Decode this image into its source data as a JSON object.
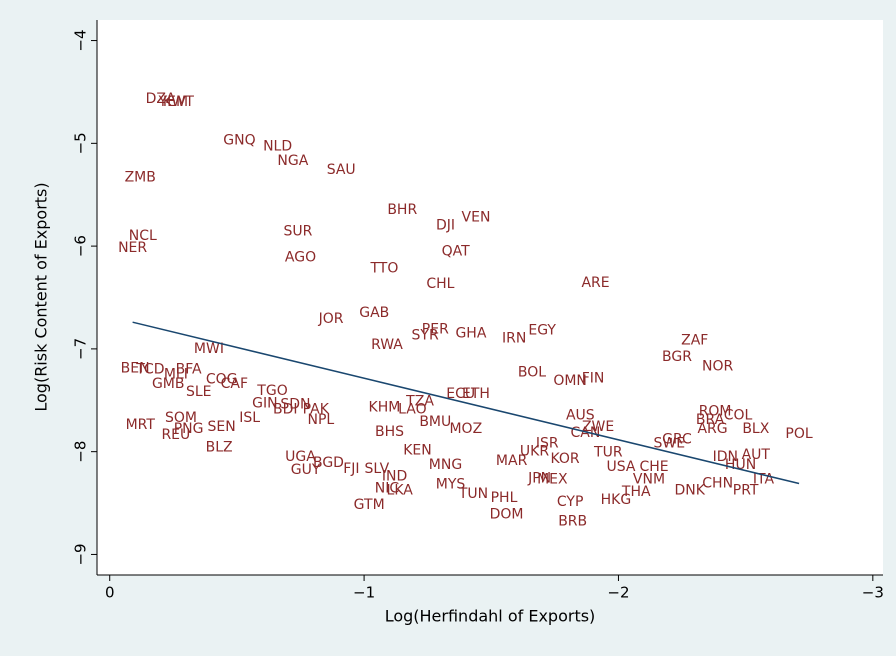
{
  "chart_data": {
    "type": "scatter",
    "x_label": "Log(Herfindahl of Exports)",
    "y_label": "Log(Risk Content of Exports)",
    "xlim": [
      0.05,
      -3.04
    ],
    "ylim": [
      -9.2,
      -3.8
    ],
    "xticks": [
      0,
      {
        "value": -1,
        "label": "−1"
      },
      {
        "value": -2,
        "label": "−2"
      },
      {
        "value": -3,
        "label": "−3"
      }
    ],
    "yticks": [
      {
        "value": -4,
        "label": "−4"
      },
      {
        "value": -5,
        "label": "−5"
      },
      {
        "value": -6,
        "label": "−6"
      },
      {
        "value": -7,
        "label": "−7"
      },
      {
        "value": -8,
        "label": "−8"
      },
      {
        "value": -9,
        "label": "−9"
      }
    ],
    "label_color": "#8b2a2a",
    "labels": [
      "DZA",
      "KWT",
      "YEM",
      "GNQ",
      "NLD",
      "NGA",
      "SAU",
      "ZMB",
      "BHR",
      "VEN",
      "DJI",
      "SUR",
      "NCL",
      "NER",
      "QAT",
      "AGO",
      "TTO",
      "ARE",
      "CHL",
      "GAB",
      "JOR",
      "EGY",
      "PER",
      "SYR",
      "GHA",
      "IRN",
      "ZAF",
      "RWA",
      "MWI",
      "BGR",
      "NOR",
      "BEN",
      "TCD",
      "BFA",
      "MLI",
      "BOL",
      "FIN",
      "OMN",
      "COG",
      "GMB",
      "CAF",
      "SLE",
      "TGO",
      "ECU",
      "ETH",
      "GIN",
      "SDN",
      "BDI",
      "PAK",
      "TZA",
      "KHM",
      "LAO",
      "ROM",
      "COL",
      "AUS",
      "SOM",
      "ISL",
      "NPL",
      "BRA",
      "MRT",
      "PNG",
      "SEN",
      "ZWE",
      "BLX",
      "ARG",
      "POL",
      "REU",
      "CAN",
      "BHS",
      "BMU",
      "MOZ",
      "GRC",
      "SWE",
      "ISR",
      "BLZ",
      "KEN",
      "IDN",
      "AUT",
      "UKR",
      "TUR",
      "HUN",
      "UGA",
      "BGD",
      "GUY",
      "FJI",
      "SLV",
      "KOR",
      "ITA",
      "CHN",
      "JPN",
      "MEX",
      "PRT",
      "DNK",
      "VNM",
      "THA",
      "HKG",
      "CYP",
      "TUN",
      "PHL",
      "DOM",
      "BRB",
      "IND",
      "NIC",
      "LKA",
      "MYS",
      "MAR",
      "GTM",
      "MNG",
      "USA",
      "CHE"
    ],
    "x": [
      -0.2,
      -0.27,
      -0.25,
      -0.51,
      -0.66,
      -0.72,
      -0.91,
      -0.12,
      -1.15,
      -1.44,
      -1.32,
      -0.74,
      -0.13,
      -0.09,
      -1.36,
      -0.75,
      -1.08,
      -1.91,
      -1.3,
      -1.04,
      -0.87,
      -1.7,
      -1.28,
      -1.24,
      -1.42,
      -1.59,
      -2.3,
      -1.09,
      -0.39,
      -2.23,
      -2.39,
      -0.1,
      -0.16,
      -0.31,
      -0.26,
      -1.66,
      -1.9,
      -1.81,
      -0.44,
      -0.23,
      -0.49,
      -0.35,
      -0.64,
      -1.38,
      -1.44,
      -0.61,
      -0.73,
      -0.69,
      -0.81,
      -1.22,
      -1.08,
      -1.19,
      -2.38,
      -2.47,
      -1.85,
      -0.28,
      -0.55,
      -0.83,
      -2.36,
      -0.12,
      -0.31,
      -0.44,
      -1.92,
      -2.54,
      -2.37,
      -2.71,
      -0.26,
      -1.87,
      -1.1,
      -1.28,
      -1.4,
      -2.23,
      -2.2,
      -1.72,
      -0.43,
      -1.21,
      -2.42,
      -2.54,
      -1.67,
      -1.96,
      -2.48,
      -0.75,
      -0.86,
      -0.77,
      -0.95,
      -1.05,
      -1.79,
      -2.57,
      -2.39,
      -1.69,
      -1.74,
      -2.5,
      -2.28,
      -2.12,
      -2.07,
      -1.99,
      -1.81,
      -1.43,
      -1.55,
      -1.56,
      -1.82,
      -1.12,
      -1.09,
      -1.14,
      -1.34,
      -1.58,
      -1.02,
      -1.32,
      -2.01,
      -2.14
    ],
    "y": [
      -4.57,
      -4.6,
      -4.6,
      -4.97,
      -5.03,
      -5.17,
      -5.26,
      -5.33,
      -5.65,
      -5.72,
      -5.8,
      -5.86,
      -5.9,
      -6.02,
      -6.05,
      -6.11,
      -6.22,
      -6.36,
      -6.37,
      -6.65,
      -6.71,
      -6.82,
      -6.81,
      -6.87,
      -6.85,
      -6.9,
      -6.92,
      -6.96,
      -7.0,
      -7.08,
      -7.17,
      -7.19,
      -7.2,
      -7.2,
      -7.25,
      -7.23,
      -7.29,
      -7.31,
      -7.3,
      -7.34,
      -7.34,
      -7.42,
      -7.41,
      -7.44,
      -7.44,
      -7.53,
      -7.54,
      -7.59,
      -7.59,
      -7.51,
      -7.57,
      -7.59,
      -7.61,
      -7.65,
      -7.65,
      -7.67,
      -7.67,
      -7.69,
      -7.69,
      -7.74,
      -7.78,
      -7.76,
      -7.76,
      -7.78,
      -7.78,
      -7.83,
      -7.84,
      -7.82,
      -7.81,
      -7.71,
      -7.78,
      -7.88,
      -7.92,
      -7.92,
      -7.96,
      -7.99,
      -8.05,
      -8.03,
      -8.0,
      -8.01,
      -8.13,
      -8.05,
      -8.11,
      -8.18,
      -8.17,
      -8.17,
      -8.07,
      -8.27,
      -8.31,
      -8.26,
      -8.27,
      -8.38,
      -8.38,
      -8.27,
      -8.39,
      -8.47,
      -8.49,
      -8.41,
      -8.45,
      -8.61,
      -8.68,
      -8.24,
      -8.36,
      -8.38,
      -8.32,
      -8.09,
      -8.52,
      -8.13,
      -8.15,
      -8.15
    ],
    "fit_line": {
      "color": "#1a476f",
      "x": [
        -0.09,
        -2.71
      ],
      "y": [
        -6.74,
        -8.31
      ]
    }
  }
}
